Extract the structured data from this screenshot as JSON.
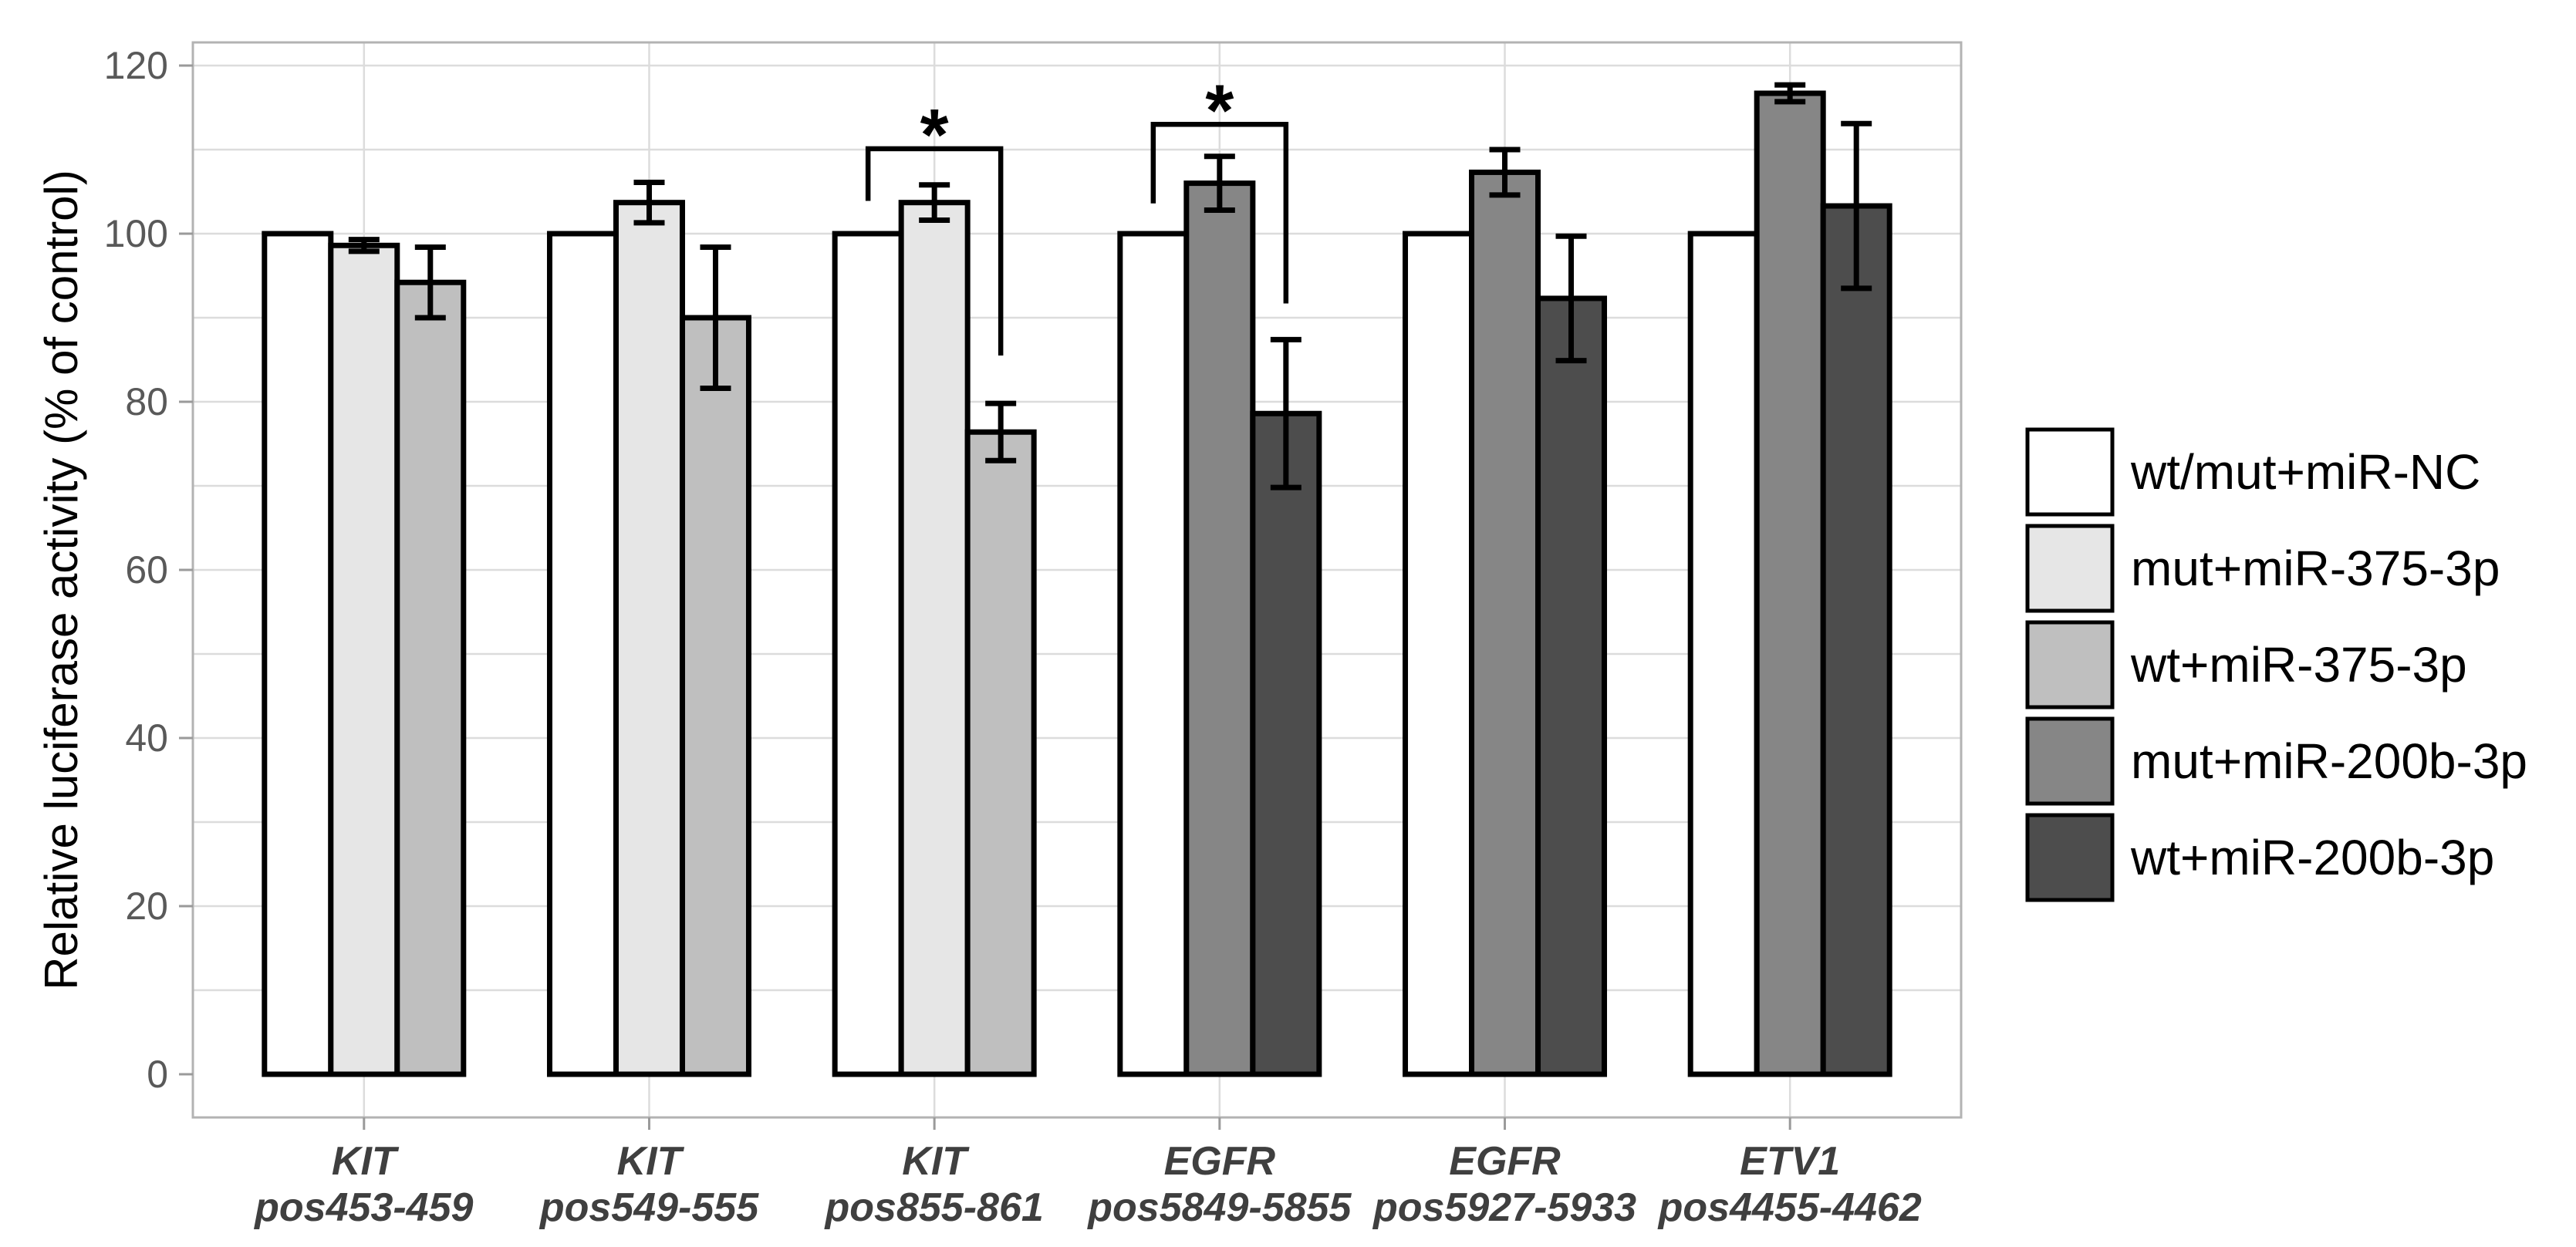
{
  "figure": {
    "background": "#ffffff"
  },
  "style": {
    "grid_color": "#dcdcdc",
    "panel_border_color": "#b3b3b3",
    "tick_color": "#9a9a9a",
    "ytick_label_color": "#595959",
    "xlabel_color": "#3f3f3f",
    "axis_title_color": "#000000",
    "bar_outline_color": "#000000",
    "error_bar_color": "#000000",
    "bracket_color": "#000000",
    "star_color": "#000000",
    "legend_text_color": "#000000",
    "legend_box_border": "#000000"
  },
  "chart_data": {
    "type": "bar",
    "title": "",
    "xlabel": "",
    "ylabel": "Relative luciferase activity (% of control)",
    "ylim": [
      0,
      120
    ],
    "ytick_step": 20,
    "grid_step": 10,
    "grid": true,
    "legend_position": "right",
    "series": [
      {
        "name": "wt/mut+miR-NC",
        "color": "#ffffff"
      },
      {
        "name": "mut+miR-375-3p",
        "color": "#e6e6e6"
      },
      {
        "name": "wt+miR-375-3p",
        "color": "#bfbfbf"
      },
      {
        "name": "mut+miR-200b-3p",
        "color": "#868686"
      },
      {
        "name": "wt+miR-200b-3p",
        "color": "#4d4d4d"
      }
    ],
    "categories": [
      {
        "gene": "KIT",
        "position": "pos453-459"
      },
      {
        "gene": "KIT",
        "position": "pos549-555"
      },
      {
        "gene": "KIT",
        "position": "pos855-861"
      },
      {
        "gene": "EGFR",
        "position": "pos5849-5855"
      },
      {
        "gene": "EGFR",
        "position": "pos5927-5933"
      },
      {
        "gene": "ETV1",
        "position": "pos4455-4462"
      }
    ],
    "bars": [
      {
        "category": 0,
        "values": [
          {
            "series": 0,
            "value": 100,
            "error": null
          },
          {
            "series": 1,
            "value": 98.6,
            "error": 0.7
          },
          {
            "series": 2,
            "value": 94.2,
            "error": 4.2
          }
        ]
      },
      {
        "category": 1,
        "values": [
          {
            "series": 0,
            "value": 100,
            "error": null
          },
          {
            "series": 1,
            "value": 103.7,
            "error": 2.4
          },
          {
            "series": 2,
            "value": 90.0,
            "error": 8.4
          }
        ]
      },
      {
        "category": 2,
        "values": [
          {
            "series": 0,
            "value": 100,
            "error": null
          },
          {
            "series": 1,
            "value": 103.7,
            "error": 2.1
          },
          {
            "series": 2,
            "value": 76.4,
            "error": 3.4
          }
        ]
      },
      {
        "category": 3,
        "values": [
          {
            "series": 0,
            "value": 100,
            "error": null
          },
          {
            "series": 3,
            "value": 106.0,
            "error": 3.2
          },
          {
            "series": 4,
            "value": 78.6,
            "error": 8.8
          }
        ]
      },
      {
        "category": 4,
        "values": [
          {
            "series": 0,
            "value": 100,
            "error": null
          },
          {
            "series": 3,
            "value": 107.3,
            "error": 2.7
          },
          {
            "series": 4,
            "value": 92.3,
            "error": 7.4
          }
        ]
      },
      {
        "category": 5,
        "values": [
          {
            "series": 0,
            "value": 100,
            "error": null
          },
          {
            "series": 3,
            "value": 116.7,
            "error": 1.0
          },
          {
            "series": 4,
            "value": 103.3,
            "error": 9.8
          }
        ]
      }
    ],
    "significance": [
      {
        "category": 2,
        "label": "*",
        "bar_y": 110.1,
        "left_bar": 0,
        "right_bar": 2,
        "left_drop": 103.9,
        "right_drop": 85.5
      },
      {
        "category": 3,
        "label": "*",
        "bar_y": 113.0,
        "left_bar": 0,
        "right_bar": 2,
        "left_drop": 103.6,
        "right_drop": 91.7
      }
    ]
  }
}
